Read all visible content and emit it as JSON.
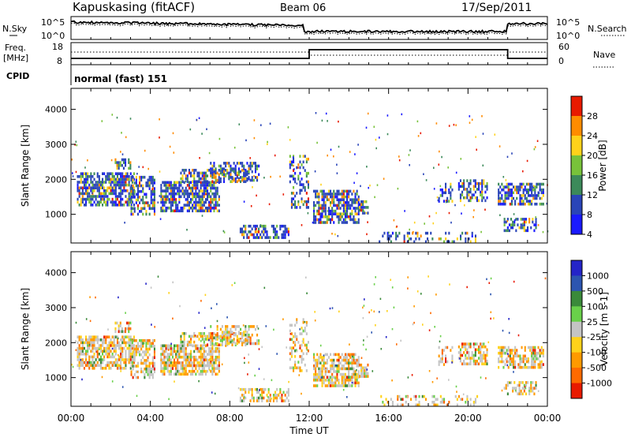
{
  "header": {
    "station": "Kapuskasing (fitACF)",
    "beam": "Beam 06",
    "date": "17/Sep/2011"
  },
  "noise_panel": {
    "left_label": "N.Sky",
    "right_label": "N.Search",
    "tick_top": "10^5",
    "tick_bottom": "10^0"
  },
  "freq_panel": {
    "left_label": "Freq.",
    "left_unit": "[MHz]",
    "left_ticks": [
      "18",
      "8"
    ],
    "right_label": "Nave",
    "right_ticks": [
      "60",
      "0"
    ]
  },
  "cpid": {
    "label": "CPID",
    "value": "normal (fast) 151"
  },
  "chart_data": [
    {
      "type": "heatmap",
      "name": "power",
      "ylabel": "Slant Range [km]",
      "xlabel": "Time UT",
      "xticks": [
        "00:00",
        "04:00",
        "08:00",
        "12:00",
        "16:00",
        "20:00",
        "00:00"
      ],
      "yticks": [
        1000,
        2000,
        3000,
        4000
      ],
      "ylim": [
        180,
        4600
      ],
      "colorbar_label": "Power [dB]",
      "colorbar_ticks": [
        "4",
        "8",
        "12",
        "16",
        "20",
        "24",
        "28"
      ],
      "colors": [
        "#1a1aff",
        "#2a45b8",
        "#3c8a5a",
        "#78c23a",
        "#ffd21a",
        "#ff8c00",
        "#e81a00"
      ]
    },
    {
      "type": "heatmap",
      "name": "velocity",
      "ylabel": "Slant Range [km]",
      "xlabel": "Time UT",
      "xticks": [
        "00:00",
        "04:00",
        "08:00",
        "12:00",
        "16:00",
        "20:00",
        "00:00"
      ],
      "yticks": [
        1000,
        2000,
        3000,
        4000
      ],
      "ylim": [
        180,
        4600
      ],
      "colorbar_label": "Velocity [m s-1]",
      "colorbar_ticks": [
        "1000",
        "500",
        "100",
        "25",
        "-25",
        "-100",
        "-500",
        "-1000"
      ],
      "colors": [
        "#2424c8",
        "#2c55b0",
        "#3a8a3a",
        "#69d04a",
        "#c4c4c4",
        "#ffd21a",
        "#ff9a00",
        "#ff6a00",
        "#e81a00"
      ]
    }
  ]
}
